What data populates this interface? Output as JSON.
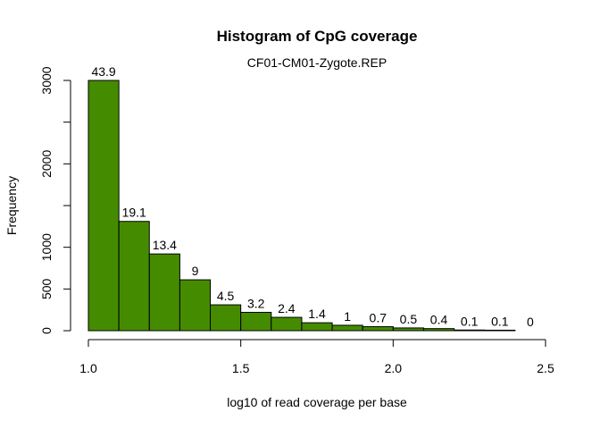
{
  "chart_data": {
    "type": "bar",
    "title": "Histogram of CpG coverage",
    "subtitle": "CF01-CM01-Zygote.REP",
    "xlabel": "log10 of read coverage per base",
    "ylabel": "Frequency",
    "bin_edges": [
      1.0,
      1.1,
      1.2,
      1.3,
      1.4,
      1.5,
      1.6,
      1.7,
      1.8,
      1.9,
      2.0,
      2.1,
      2.2,
      2.3,
      2.4,
      2.5
    ],
    "values": [
      3000,
      1310,
      920,
      610,
      310,
      220,
      160,
      95,
      65,
      48,
      33,
      25,
      8,
      6,
      0
    ],
    "labels": [
      "43.9",
      "19.1",
      "13.4",
      "9",
      "4.5",
      "3.2",
      "2.4",
      "1.4",
      "1",
      "0.7",
      "0.5",
      "0.4",
      "0.1",
      "0.1",
      "0"
    ],
    "xlim": [
      1.0,
      2.5
    ],
    "ylim": [
      0,
      3000
    ],
    "x_ticks": [
      1.0,
      1.5,
      2.0,
      2.5
    ],
    "x_tick_labels": [
      "1.0",
      "1.5",
      "2.0",
      "2.5"
    ],
    "y_ticks": [
      0,
      500,
      1000,
      1500,
      2000,
      2500,
      3000
    ],
    "y_tick_labels": [
      "0",
      "500",
      "1000",
      "",
      "2000",
      "",
      "3000"
    ],
    "bar_color": "#458b00",
    "grid": false,
    "legend": "none"
  }
}
